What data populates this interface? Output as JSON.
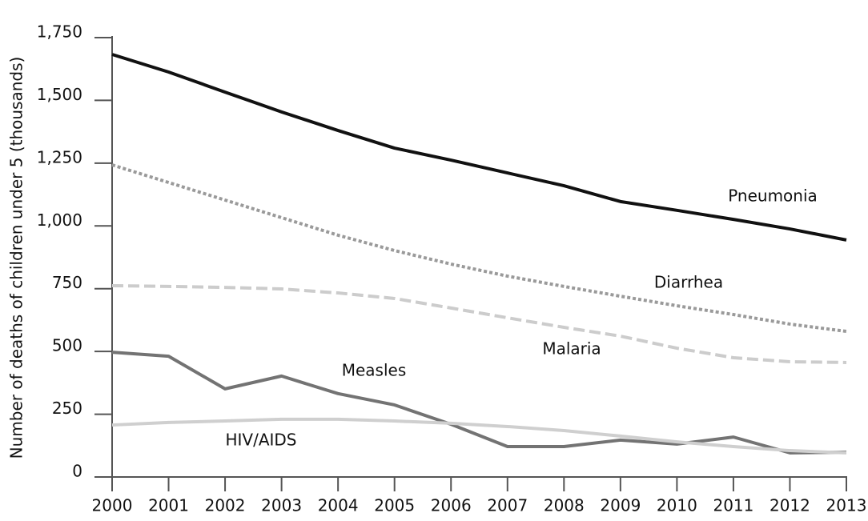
{
  "chart_data": {
    "type": "line",
    "y_label": "Number of deaths of children under 5 (thousands)",
    "x": [
      2000,
      2001,
      2002,
      2003,
      2004,
      2005,
      2006,
      2007,
      2008,
      2009,
      2010,
      2011,
      2012,
      2013
    ],
    "xlim": [
      2000,
      2013
    ],
    "ylim": [
      0,
      1750
    ],
    "yticks": [
      0,
      250,
      500,
      750,
      {
        "value": 1000,
        "label": "1,000"
      },
      {
        "value": 1250,
        "label": "1,250"
      },
      {
        "value": 1500,
        "label": "1,500"
      },
      {
        "value": 1750,
        "label": "1,750"
      }
    ],
    "series": [
      {
        "name": "Pneumonia",
        "color": "#111111",
        "dash": "solid",
        "values": [
          1683,
          1613,
          1533,
          1454,
          1380,
          1310,
          1262,
          1211,
          1160,
          1097,
          1062,
          1026,
          988,
          944
        ]
      },
      {
        "name": "Diarrhea",
        "color": "#9a9a9a",
        "dash": "dotted",
        "values": [
          1243,
          1173,
          1103,
          1033,
          963,
          902,
          848,
          800,
          759,
          720,
          682,
          647,
          609,
          580
        ]
      },
      {
        "name": "Malaria",
        "color": "#cccccc",
        "dash": "dashed",
        "values": [
          762,
          759,
          755,
          749,
          733,
          711,
          673,
          634,
          596,
          561,
          513,
          475,
          459,
          456
        ]
      },
      {
        "name": "Measles",
        "color": "#737373",
        "dash": "solid",
        "values": [
          497,
          481,
          351,
          402,
          332,
          287,
          210,
          121,
          121,
          147,
          131,
          159,
          96,
          99
        ]
      },
      {
        "name": "HIV/AIDS",
        "color": "#cfcfcf",
        "dash": "solid",
        "values": [
          207,
          217,
          223,
          230,
          230,
          223,
          214,
          201,
          185,
          163,
          140,
          121,
          105,
          96
        ]
      }
    ]
  }
}
